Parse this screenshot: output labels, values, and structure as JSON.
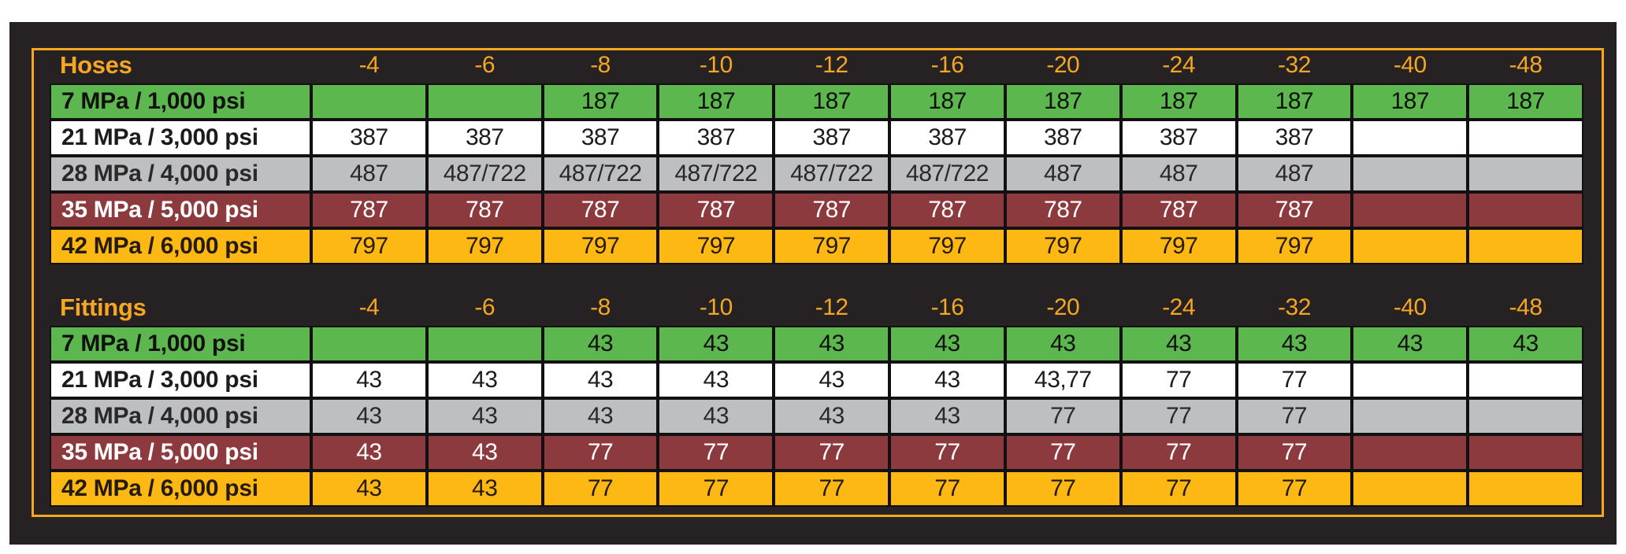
{
  "palette": {
    "panel_bg": "#262122",
    "frame_border": "#F5A81F",
    "header_text": "#F5A623",
    "grid_line": "#131011",
    "row_green": "#5CB84E",
    "row_white": "#FFFFFF",
    "row_gray": "#BDBFC1",
    "row_red": "#8D3A3F",
    "row_orange": "#FDB813"
  },
  "size_columns": [
    "-4",
    "-6",
    "-8",
    "-10",
    "-12",
    "-16",
    "-20",
    "-24",
    "-32",
    "-40",
    "-48"
  ],
  "chart_data": [
    {
      "type": "table",
      "title": "Hoses",
      "categories": [
        "-4",
        "-6",
        "-8",
        "-10",
        "-12",
        "-16",
        "-20",
        "-24",
        "-32",
        "-40",
        "-48"
      ],
      "rows": [
        {
          "label": "7 MPa / 1,000 psi",
          "color": "green",
          "values": [
            "",
            "",
            "187",
            "187",
            "187",
            "187",
            "187",
            "187",
            "187",
            "187",
            "187"
          ]
        },
        {
          "label": "21 MPa / 3,000 psi",
          "color": "white",
          "values": [
            "387",
            "387",
            "387",
            "387",
            "387",
            "387",
            "387",
            "387",
            "387",
            "",
            ""
          ]
        },
        {
          "label": "28 MPa / 4,000 psi",
          "color": "gray",
          "values": [
            "487",
            "487/722",
            "487/722",
            "487/722",
            "487/722",
            "487/722",
            "487",
            "487",
            "487",
            "",
            ""
          ]
        },
        {
          "label": "35 MPa / 5,000 psi",
          "color": "red",
          "values": [
            "787",
            "787",
            "787",
            "787",
            "787",
            "787",
            "787",
            "787",
            "787",
            "",
            ""
          ]
        },
        {
          "label": "42 MPa / 6,000 psi",
          "color": "orange",
          "values": [
            "797",
            "797",
            "797",
            "797",
            "797",
            "797",
            "797",
            "797",
            "797",
            "",
            ""
          ]
        }
      ]
    },
    {
      "type": "table",
      "title": "Fittings",
      "categories": [
        "-4",
        "-6",
        "-8",
        "-10",
        "-12",
        "-16",
        "-20",
        "-24",
        "-32",
        "-40",
        "-48"
      ],
      "rows": [
        {
          "label": "7 MPa / 1,000 psi",
          "color": "green",
          "values": [
            "",
            "",
            "43",
            "43",
            "43",
            "43",
            "43",
            "43",
            "43",
            "43",
            "43"
          ]
        },
        {
          "label": "21 MPa / 3,000 psi",
          "color": "white",
          "values": [
            "43",
            "43",
            "43",
            "43",
            "43",
            "43",
            "43,77",
            "77",
            "77",
            "",
            ""
          ]
        },
        {
          "label": "28 MPa / 4,000 psi",
          "color": "gray",
          "values": [
            "43",
            "43",
            "43",
            "43",
            "43",
            "43",
            "77",
            "77",
            "77",
            "",
            ""
          ]
        },
        {
          "label": "35 MPa / 5,000 psi",
          "color": "red",
          "values": [
            "43",
            "43",
            "77",
            "77",
            "77",
            "77",
            "77",
            "77",
            "77",
            "",
            ""
          ]
        },
        {
          "label": "42 MPa / 6,000 psi",
          "color": "orange",
          "values": [
            "43",
            "43",
            "77",
            "77",
            "77",
            "77",
            "77",
            "77",
            "77",
            "",
            ""
          ]
        }
      ]
    }
  ]
}
